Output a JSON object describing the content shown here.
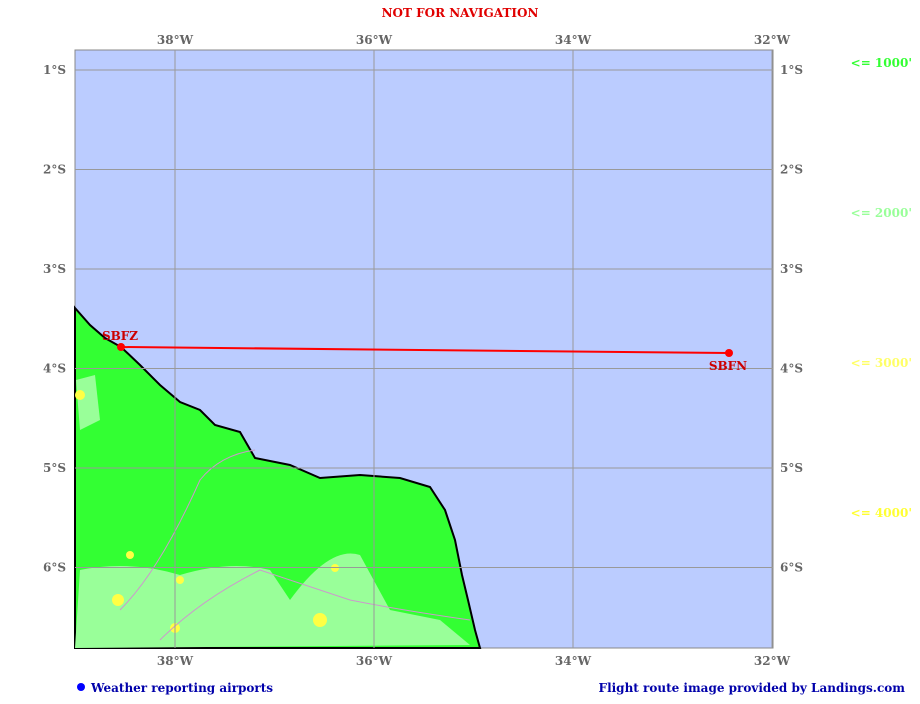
{
  "title": "NOT FOR NAVIGATION",
  "lon_labels": [
    "38°W",
    "36°W",
    "34°W",
    "32°W"
  ],
  "lat_labels": [
    "1°S",
    "2°S",
    "3°S",
    "4°S",
    "5°S",
    "6°S"
  ],
  "airports": [
    {
      "code": "SBFZ"
    },
    {
      "code": "SBFN"
    }
  ],
  "legend": [
    "<= 1000'",
    "<= 2000'",
    "<= 3000'",
    "<= 4000'"
  ],
  "footer": {
    "left": "Weather reporting airports",
    "right": "Flight route image provided by Landings.com"
  }
}
